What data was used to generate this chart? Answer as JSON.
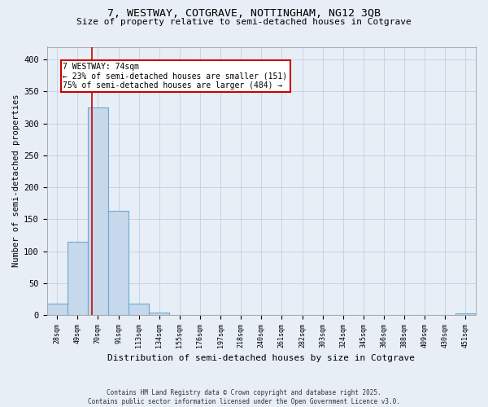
{
  "title_line1": "7, WESTWAY, COTGRAVE, NOTTINGHAM, NG12 3QB",
  "title_line2": "Size of property relative to semi-detached houses in Cotgrave",
  "xlabel": "Distribution of semi-detached houses by size in Cotgrave",
  "ylabel": "Number of semi-detached properties",
  "categories": [
    "28sqm",
    "49sqm",
    "70sqm",
    "91sqm",
    "113sqm",
    "134sqm",
    "155sqm",
    "176sqm",
    "197sqm",
    "218sqm",
    "240sqm",
    "261sqm",
    "282sqm",
    "303sqm",
    "324sqm",
    "345sqm",
    "366sqm",
    "388sqm",
    "409sqm",
    "430sqm",
    "451sqm"
  ],
  "values": [
    18,
    115,
    325,
    163,
    18,
    4,
    0,
    0,
    0,
    0,
    0,
    0,
    0,
    0,
    0,
    0,
    0,
    0,
    0,
    0,
    2
  ],
  "bar_color": "#c5d8ec",
  "bar_edge_color": "#6aaad4",
  "grid_color": "#c8d4e4",
  "background_color": "#e8eef6",
  "subject_value": 74,
  "annotation_text": "7 WESTWAY: 74sqm\n← 23% of semi-detached houses are smaller (151)\n75% of semi-detached houses are larger (484) →",
  "annotation_box_color": "#cc0000",
  "footer_line1": "Contains HM Land Registry data © Crown copyright and database right 2025.",
  "footer_line2": "Contains public sector information licensed under the Open Government Licence v3.0.",
  "ylim": [
    0,
    420
  ],
  "yticks": [
    0,
    50,
    100,
    150,
    200,
    250,
    300,
    350,
    400
  ]
}
